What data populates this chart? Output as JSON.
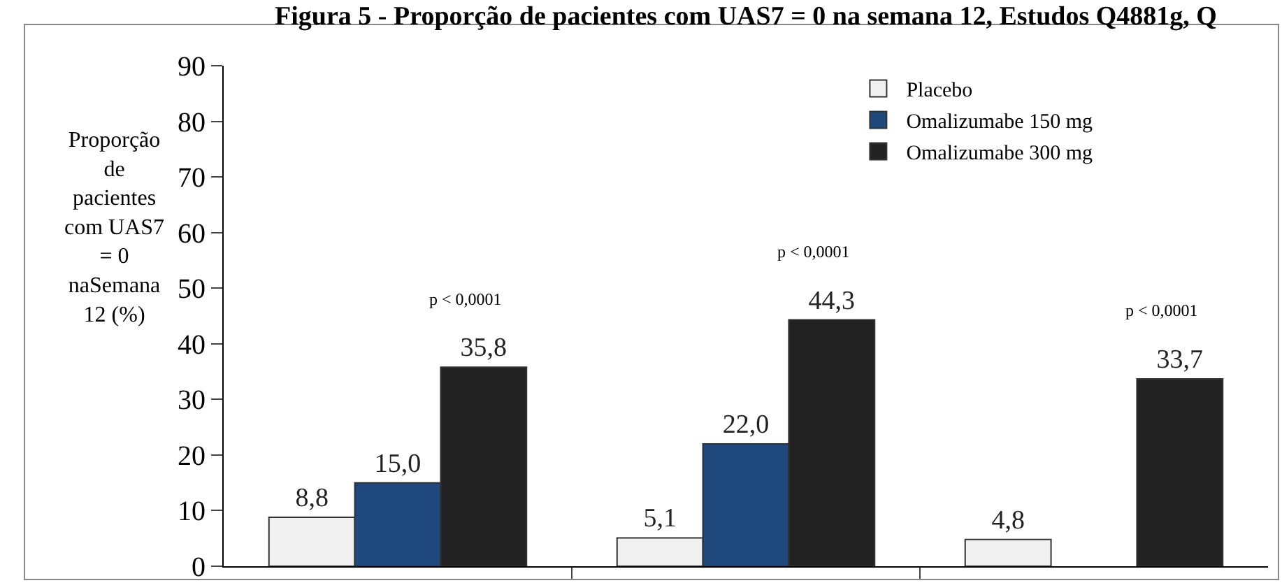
{
  "chart_data": {
    "type": "bar",
    "title": "Figura 5 - Proporção de pacientes com UAS7 = 0 na semana 12, Estudos Q4881g, Q",
    "ylabel": "Proporção de pacientes com UAS7 = 0 naSemana 12 (%)",
    "categories": [
      null,
      null,
      null
    ],
    "series": [
      {
        "name": "Placebo",
        "color": "#f0f0f0",
        "values": [
          8.8,
          5.1,
          4.8
        ],
        "value_labels": [
          "8,8",
          "5,1",
          "4,8"
        ]
      },
      {
        "name": "Omalizumabe 150 mg",
        "color": "#1f497d",
        "values": [
          15.0,
          22.0,
          null
        ],
        "value_labels": [
          "15,0",
          "22,0",
          null
        ]
      },
      {
        "name": "Omalizumabe 300 mg",
        "color": "#222222",
        "values": [
          35.8,
          44.3,
          33.7
        ],
        "value_labels": [
          "35,8",
          "44,3",
          "33,7"
        ]
      }
    ],
    "annotations": [
      "p < 0,0001",
      "p < 0,0001",
      "p < 0,0001"
    ],
    "ylim": [
      0,
      90
    ],
    "yticks": [
      0,
      10,
      20,
      30,
      40,
      50,
      60,
      70,
      80,
      90
    ],
    "grid": false,
    "legend": "top right"
  }
}
